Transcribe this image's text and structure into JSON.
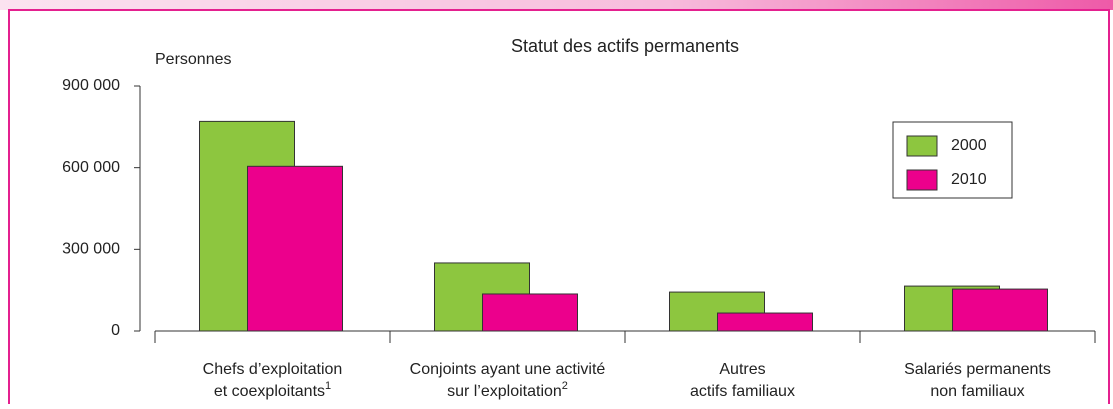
{
  "chart_data": {
    "type": "bar",
    "title": "Statut des actifs permanents",
    "y_axis_label": "Personnes",
    "categories": [
      [
        "Chefs d’exploitation",
        "et coexploitants"
      ],
      [
        "Conjoints ayant une activité",
        "sur l’exploitation"
      ],
      [
        "Autres",
        "actifs familiaux"
      ],
      [
        "Salariés permanents",
        "non familiaux"
      ]
    ],
    "category_notes": [
      "1",
      "2",
      null,
      null
    ],
    "series": [
      {
        "name": "2000",
        "color": "#8dc63f",
        "values": [
          770000,
          250000,
          143000,
          165000
        ]
      },
      {
        "name": "2010",
        "color": "#ec008c",
        "values": [
          605000,
          136000,
          66000,
          154000
        ]
      }
    ],
    "ylim": [
      0,
      900000
    ],
    "yticks": [
      0,
      {
        "value": 300000,
        "label": "300 000"
      },
      {
        "value": 600000,
        "label": "600 000"
      },
      {
        "value": 900000,
        "label": "900 000"
      }
    ],
    "legend": "upper right"
  }
}
